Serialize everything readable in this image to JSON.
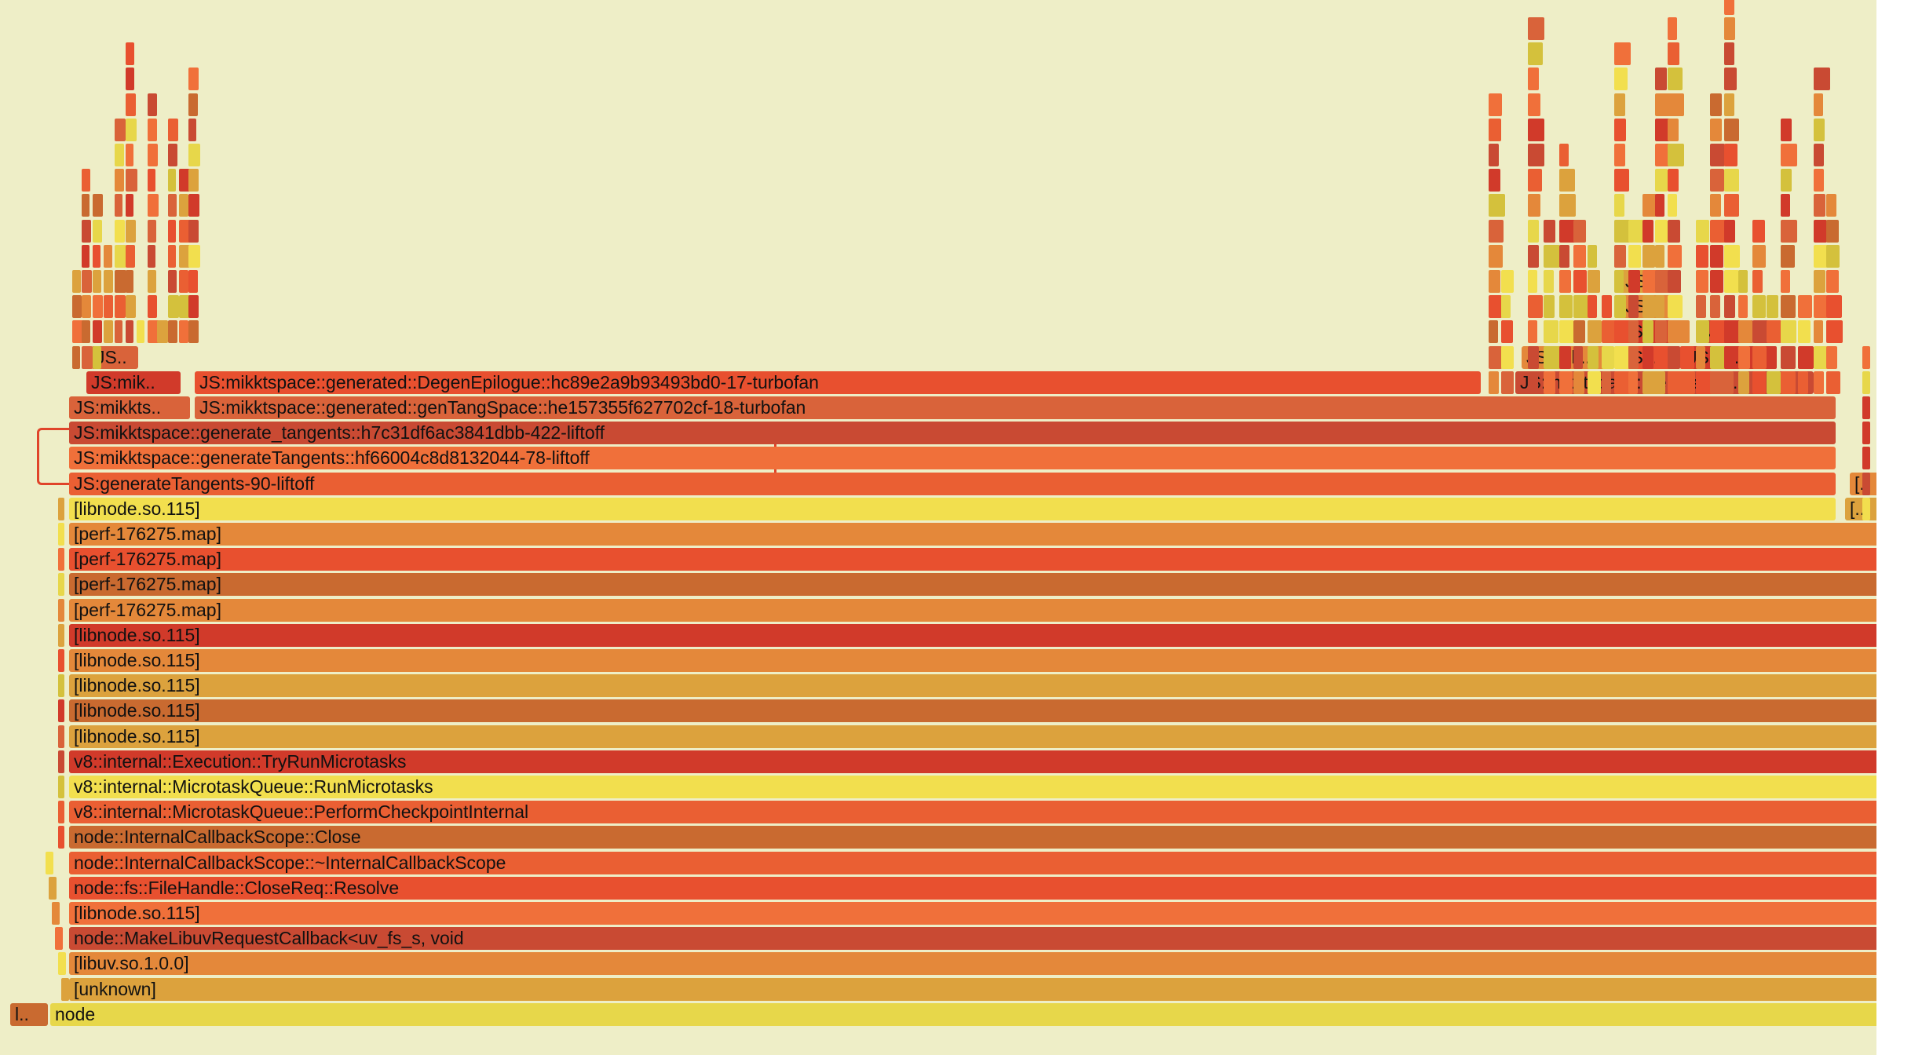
{
  "frames": [
    "JS..",
    "JS:mik..",
    "JS:mikktspace::generated::DegenEpilogue::hc89e2a9b93493bd0-17-turbofan",
    "JS:mikkts..",
    "JS:mikktspace::generated::genTangSpace::he157355f627702cf-18-turbofan",
    "JS:mikktspace::generate_tangents::h7c31df6ac3841dbb-422-liftoff",
    "JS:mikktspace::generateTangents::hf66004c8d8132044-78-liftoff",
    "JS:generateTangents-90-liftoff",
    "[libnode.so.115]",
    "[perf-176275.map]",
    "[perf-176275.map]",
    "[perf-176275.map]",
    "[perf-176275.map]",
    "[libnode.so.115]",
    "[libnode.so.115]",
    "[libnode.so.115]",
    "[libnode.so.115]",
    "[libnode.so.115]",
    "v8::internal::Execution::TryRunMicrotasks",
    "v8::internal::MicrotaskQueue::RunMicrotasks",
    "v8::internal::MicrotaskQueue::PerformCheckpointInternal",
    "node::InternalCallbackScope::Close",
    "node::InternalCallbackScope::~InternalCallbackScope",
    "node::fs::FileHandle::CloseReq::Resolve",
    "[libnode.so.115]",
    "node::MakeLibuvRequestCallback<uv_fs_s, void",
    "[libuv.so.1.0.0]",
    "[unknown]",
    "l..",
    "node",
    "JS..",
    "JS..",
    "JS..",
    "JS..",
    "JS:mik..",
    "JS:..",
    "JS:na..",
    "JS:mikktspace::generated..",
    "[..",
    "[.."
  ],
  "colors": {
    "background": "#eeeec7",
    "highlight": "#e0442a",
    "palette": [
      "#e8502f",
      "#f0703a",
      "#e4883a",
      "#d9633a",
      "#c94a33",
      "#dca23d",
      "#f2df4e",
      "#d4c13c",
      "#e7d74a",
      "#d13a2a",
      "#ea5f33",
      "#c96a30"
    ]
  }
}
